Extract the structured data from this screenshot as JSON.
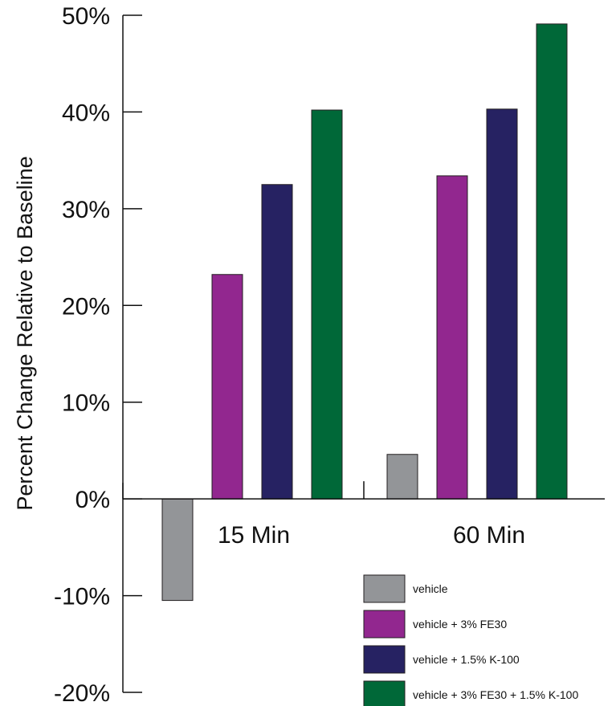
{
  "chart_data": {
    "type": "bar",
    "ylabel": "Percent Change Relative to Baseline",
    "xlabel": "",
    "ylim": [
      -20,
      50
    ],
    "yticks": [
      50,
      40,
      30,
      20,
      10,
      0,
      -10,
      -20
    ],
    "ytick_labels": [
      "50%",
      "40%",
      "30%",
      "20%",
      "10%",
      "0%",
      "-10%",
      "-20%"
    ],
    "categories": [
      "15 Min",
      "60 Min"
    ],
    "series": [
      {
        "name": "vehicle",
        "color": "#939598",
        "values": [
          -10.5,
          4.6
        ]
      },
      {
        "name": "vehicle + 3% FE30",
        "color": "#92278f",
        "values": [
          23.2,
          33.4
        ]
      },
      {
        "name": "vehicle + 1.5% K-100",
        "color": "#262262",
        "values": [
          32.5,
          40.3
        ]
      },
      {
        "name": "vehicle + 3% FE30 + 1.5% K-100",
        "color": "#006838",
        "values": [
          40.2,
          49.1
        ]
      }
    ],
    "legend_position": "bottom-right",
    "grid": false
  }
}
